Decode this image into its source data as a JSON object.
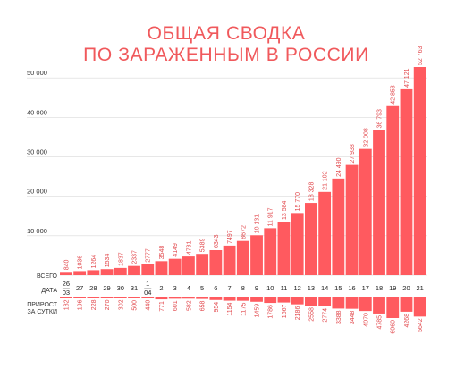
{
  "title": {
    "line1": "ОБЩАЯ СВОДКА",
    "line2": "ПО ЗАРАЖЕННЫМ В РОССИИ"
  },
  "row_labels": {
    "total": "ВСЕГО",
    "date": "ДАТА",
    "daily_line1": "ПРИРОСТ",
    "daily_line2": "ЗА СУТКИ"
  },
  "colors": {
    "title": "#f0595c",
    "bar": "#ff5a5f",
    "value_label": "#e24a4e"
  },
  "chart_data": {
    "type": "bar",
    "title": "ОБЩАЯ СВОДКА ПО ЗАРАЖЕННЫМ В РОССИИ",
    "xlabel": "ДАТА",
    "ylabel": "",
    "ylim": [
      0,
      52763
    ],
    "yticks": [
      {
        "value": 10000,
        "label": "10 000"
      },
      {
        "value": 20000,
        "label": "20 000"
      },
      {
        "value": 30000,
        "label": "30 000"
      },
      {
        "value": 40000,
        "label": "40 000"
      },
      {
        "value": 50000,
        "label": "50 000"
      }
    ],
    "grid": true,
    "categories": [
      {
        "line1": "26",
        "line2": "03"
      },
      {
        "line1": "27",
        "line2": ""
      },
      {
        "line1": "28",
        "line2": ""
      },
      {
        "line1": "29",
        "line2": ""
      },
      {
        "line1": "30",
        "line2": ""
      },
      {
        "line1": "31",
        "line2": ""
      },
      {
        "line1": "1",
        "line2": "04"
      },
      {
        "line1": "2",
        "line2": ""
      },
      {
        "line1": "3",
        "line2": ""
      },
      {
        "line1": "4",
        "line2": ""
      },
      {
        "line1": "5",
        "line2": ""
      },
      {
        "line1": "6",
        "line2": ""
      },
      {
        "line1": "7",
        "line2": ""
      },
      {
        "line1": "8",
        "line2": ""
      },
      {
        "line1": "9",
        "line2": ""
      },
      {
        "line1": "10",
        "line2": ""
      },
      {
        "line1": "11",
        "line2": ""
      },
      {
        "line1": "12",
        "line2": ""
      },
      {
        "line1": "13",
        "line2": ""
      },
      {
        "line1": "14",
        "line2": ""
      },
      {
        "line1": "15",
        "line2": ""
      },
      {
        "line1": "16",
        "line2": ""
      },
      {
        "line1": "17",
        "line2": ""
      },
      {
        "line1": "18",
        "line2": ""
      },
      {
        "line1": "19",
        "line2": ""
      },
      {
        "line1": "20",
        "line2": ""
      },
      {
        "line1": "21",
        "line2": ""
      }
    ],
    "total_values": [
      840,
      1036,
      1264,
      1534,
      1837,
      2337,
      2777,
      3548,
      4149,
      4731,
      5389,
      6343,
      7497,
      8672,
      10131,
      11917,
      13584,
      15770,
      18328,
      21102,
      24490,
      27938,
      32008,
      36793,
      42853,
      47121,
      52763
    ],
    "total_labels": [
      "840",
      "1036",
      "1264",
      "1534",
      "1837",
      "2337",
      "2777",
      "3548",
      "4149",
      "4731",
      "5389",
      "6343",
      "7497",
      "8672",
      "10 131",
      "11 917",
      "13 584",
      "15 770",
      "18 328",
      "21 102",
      "24 490",
      "27 938",
      "32 008",
      "36 793",
      "42 853",
      "47 121",
      "52 763"
    ],
    "daily_values": [
      182,
      196,
      228,
      270,
      302,
      500,
      440,
      771,
      601,
      582,
      658,
      954,
      1154,
      1175,
      1459,
      1786,
      1667,
      2186,
      2558,
      2774,
      3388,
      3448,
      4070,
      4785,
      6060,
      4268,
      5642
    ],
    "daily_labels": [
      "182",
      "196",
      "228",
      "270",
      "302",
      "500",
      "440",
      "771",
      "601",
      "582",
      "658",
      "954",
      "1154",
      "1175",
      "1459",
      "1786",
      "1667",
      "2186",
      "2558",
      "2774",
      "3388",
      "3448",
      "4070",
      "4785",
      "6060",
      "4268",
      "5642"
    ]
  }
}
